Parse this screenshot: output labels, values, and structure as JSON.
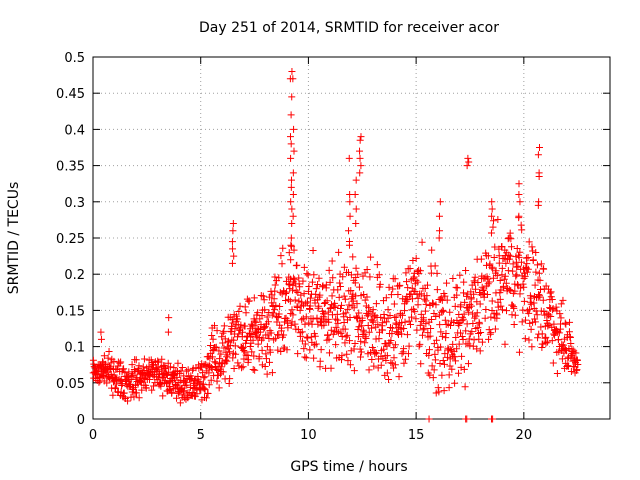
{
  "chart_data": {
    "type": "scatter",
    "title": "Day 251 of 2014, SRMTID for receiver acor",
    "xlabel": "GPS time / hours",
    "ylabel": "SRMTID / TECUs",
    "xlim": [
      0,
      24
    ],
    "ylim": [
      0,
      0.5
    ],
    "x_ticks": [
      0,
      5,
      10,
      15,
      20
    ],
    "x_tick_labels": [
      "0",
      "5",
      "10",
      "15",
      "20"
    ],
    "y_ticks": [
      0,
      0.05,
      0.1,
      0.15,
      0.2,
      0.25,
      0.3,
      0.35,
      0.4,
      0.45,
      0.5
    ],
    "y_tick_labels": [
      "0",
      "0.05",
      "0.1",
      "0.15",
      "0.2",
      "0.25",
      "0.3",
      "0.35",
      "0.4",
      "0.45",
      "0.5"
    ],
    "grid": true,
    "marker": "plus",
    "color": "#ff0000",
    "trend": [
      [
        0.0,
        0.06
      ],
      [
        0.5,
        0.07
      ],
      [
        1.0,
        0.06
      ],
      [
        1.5,
        0.05
      ],
      [
        2.0,
        0.055
      ],
      [
        2.5,
        0.06
      ],
      [
        3.0,
        0.065
      ],
      [
        3.5,
        0.055
      ],
      [
        4.0,
        0.05
      ],
      [
        4.5,
        0.045
      ],
      [
        5.0,
        0.05
      ],
      [
        5.5,
        0.08
      ],
      [
        6.0,
        0.09
      ],
      [
        6.5,
        0.11
      ],
      [
        7.0,
        0.12
      ],
      [
        7.5,
        0.12
      ],
      [
        8.0,
        0.13
      ],
      [
        8.5,
        0.14
      ],
      [
        9.0,
        0.16
      ],
      [
        9.5,
        0.17
      ],
      [
        10.0,
        0.15
      ],
      [
        10.5,
        0.14
      ],
      [
        11.0,
        0.14
      ],
      [
        11.5,
        0.15
      ],
      [
        12.0,
        0.16
      ],
      [
        12.5,
        0.15
      ],
      [
        13.0,
        0.14
      ],
      [
        13.5,
        0.12
      ],
      [
        14.0,
        0.12
      ],
      [
        14.5,
        0.15
      ],
      [
        15.0,
        0.18
      ],
      [
        15.5,
        0.14
      ],
      [
        16.0,
        0.12
      ],
      [
        16.5,
        0.11
      ],
      [
        17.0,
        0.12
      ],
      [
        17.5,
        0.13
      ],
      [
        18.0,
        0.16
      ],
      [
        18.5,
        0.18
      ],
      [
        19.0,
        0.19
      ],
      [
        19.5,
        0.2
      ],
      [
        20.0,
        0.19
      ],
      [
        20.5,
        0.17
      ],
      [
        21.0,
        0.15
      ],
      [
        21.5,
        0.13
      ],
      [
        22.0,
        0.1
      ],
      [
        22.5,
        0.075
      ]
    ],
    "spread": [
      [
        0.0,
        0.02
      ],
      [
        5.0,
        0.025
      ],
      [
        6.0,
        0.04
      ],
      [
        9.0,
        0.06
      ],
      [
        12.0,
        0.07
      ],
      [
        15.0,
        0.07
      ],
      [
        17.0,
        0.06
      ],
      [
        19.0,
        0.07
      ],
      [
        21.0,
        0.06
      ],
      [
        22.5,
        0.015
      ]
    ],
    "peaks": [
      {
        "x": 9.2,
        "values": [
          0.48,
          0.47,
          0.445,
          0.42,
          0.39,
          0.38,
          0.36,
          0.33,
          0.32,
          0.3,
          0.29,
          0.27,
          0.25,
          0.24,
          0.22
        ]
      },
      {
        "x": 9.3,
        "values": [
          0.47,
          0.4,
          0.37,
          0.34,
          0.31,
          0.28
        ]
      },
      {
        "x": 6.5,
        "values": [
          0.27,
          0.26,
          0.245,
          0.235,
          0.225,
          0.215
        ]
      },
      {
        "x": 12.4,
        "values": [
          0.39,
          0.385,
          0.37,
          0.36,
          0.35,
          0.34
        ]
      },
      {
        "x": 12.2,
        "values": [
          0.33,
          0.31,
          0.29,
          0.27
        ]
      },
      {
        "x": 11.9,
        "values": [
          0.36,
          0.31,
          0.3,
          0.28,
          0.26,
          0.24
        ]
      },
      {
        "x": 17.4,
        "values": [
          0.36,
          0.355,
          0.35
        ]
      },
      {
        "x": 20.7,
        "values": [
          0.375,
          0.365,
          0.34,
          0.335,
          0.3,
          0.295
        ]
      },
      {
        "x": 19.8,
        "values": [
          0.325,
          0.31,
          0.3,
          0.28
        ]
      },
      {
        "x": 18.5,
        "values": [
          0.3,
          0.29,
          0.28
        ]
      },
      {
        "x": 16.1,
        "values": [
          0.3,
          0.28,
          0.26,
          0.25
        ]
      },
      {
        "x": 3.5,
        "values": [
          0.14,
          0.12
        ]
      },
      {
        "x": 0.4,
        "values": [
          0.12,
          0.11
        ]
      }
    ],
    "zero_points": [
      [
        15.6,
        0.0
      ],
      [
        17.3,
        0.0
      ],
      [
        17.35,
        0.0
      ],
      [
        18.5,
        0.0
      ],
      [
        18.55,
        0.0
      ]
    ]
  }
}
